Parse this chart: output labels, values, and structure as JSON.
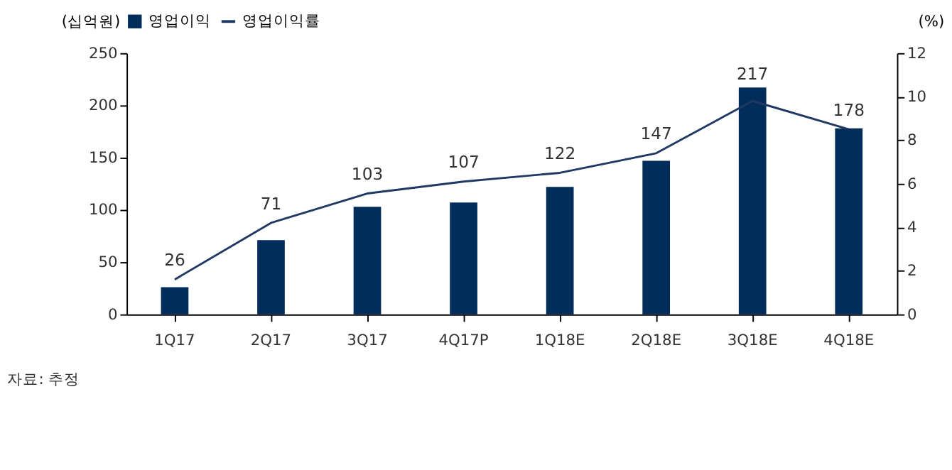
{
  "chart_data": {
    "type": "bar",
    "categories": [
      "1Q17",
      "2Q17",
      "3Q17",
      "4Q17P",
      "1Q18E",
      "2Q18E",
      "3Q18E",
      "4Q18E"
    ],
    "series": [
      {
        "name": "영업이익",
        "color": "#002d5a",
        "values": [
          26,
          71,
          103,
          107,
          122,
          147,
          217,
          178
        ],
        "value_labels": [
          "26",
          "71",
          "103",
          "107",
          "122",
          "147",
          "217",
          "178"
        ]
      },
      {
        "name": "영업이익률",
        "type": "line",
        "axis": "y2",
        "color": "#1f3864",
        "values": [
          1.6,
          4.2,
          5.55,
          6.1,
          6.5,
          7.4,
          9.8,
          8.5
        ]
      }
    ],
    "ylabel": "(십억원)",
    "y2label": "(%)",
    "ylim": [
      0,
      250
    ],
    "yticks": [
      0,
      50,
      100,
      150,
      200,
      250
    ],
    "y2lim": [
      0,
      12
    ],
    "y2ticks": [
      0,
      2,
      4,
      6,
      8,
      10,
      12
    ],
    "grid": false,
    "legend": "top",
    "marker": "none",
    "annotations": [
      "자료: 추정"
    ]
  }
}
